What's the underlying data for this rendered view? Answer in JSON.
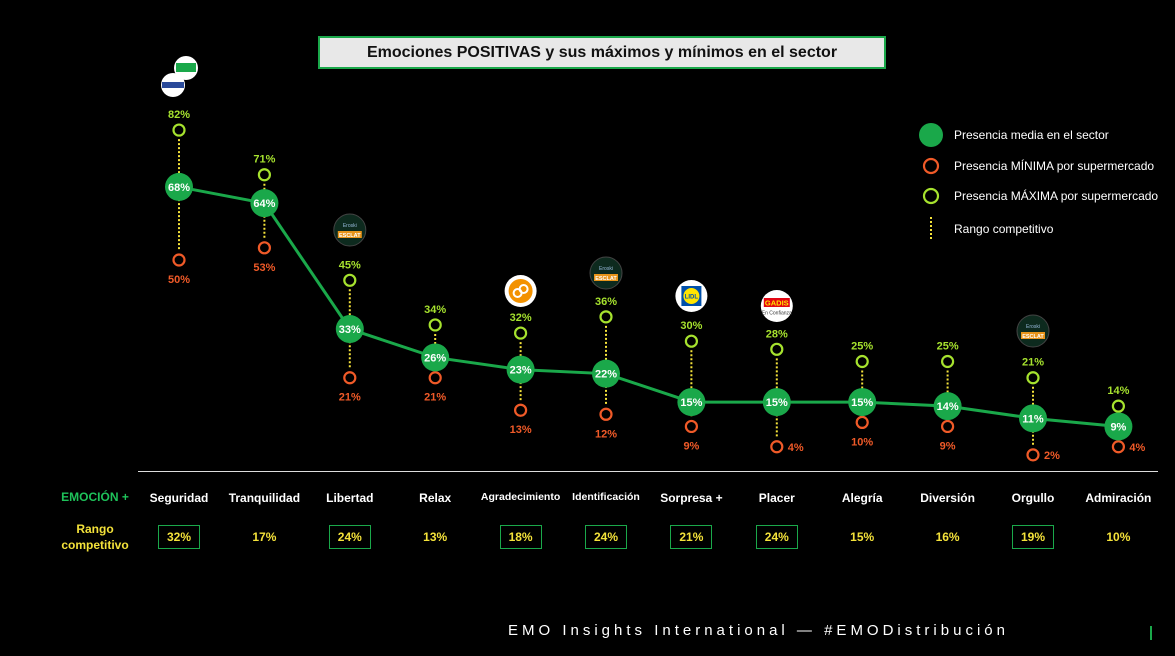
{
  "title": "Emociones POSITIVAS y sus máximos y mínimos en el sector",
  "legend": {
    "avg": "Presencia media en el sector",
    "min": "Presencia MÍNIMA por supermercado",
    "max": "Presencia MÁXIMA por supermercado",
    "range": "Rango competitivo"
  },
  "row_labels": {
    "emotion": "EMOCIÓN +",
    "range": "Rango competitivo"
  },
  "logos": {
    "seguridad": [
      "elcorteingles-logo",
      "supercor-logo"
    ],
    "libertad": "eroski-logo",
    "agradecimiento": "eroski-city-logo",
    "identificacion": "eroski-logo",
    "sorpresa": "lidl-logo",
    "placer": "gadis-logo",
    "orgullo": "eroski-logo"
  },
  "logo_text": {
    "gadis_top": "GADIS",
    "gadis_bottom": "En Confianza",
    "lidl": "LIDL",
    "eroski_top": "Eroski",
    "eroski_bottom": "ESCLAT"
  },
  "footer": "EMO Insights International — #EMODistribución",
  "colors": {
    "avg": "#1aa84a",
    "min": "#f05a28",
    "max": "#a6e22e",
    "range": "#f4e23a"
  },
  "chart_data": {
    "type": "line",
    "categories": [
      "Seguridad",
      "Tranquilidad",
      "Libertad",
      "Relax",
      "Agradecimiento",
      "Identificación",
      "Sorpresa +",
      "Placer",
      "Alegría",
      "Diversión",
      "Orgullo",
      "Admiración"
    ],
    "series": [
      {
        "name": "Presencia media en el sector",
        "values": [
          68,
          64,
          33,
          26,
          23,
          22,
          15,
          15,
          15,
          14,
          11,
          9
        ]
      },
      {
        "name": "Presencia MÍNIMA por supermercado",
        "values": [
          50,
          53,
          21,
          21,
          13,
          12,
          9,
          4,
          10,
          9,
          2,
          4
        ]
      },
      {
        "name": "Presencia MÁXIMA por supermercado",
        "values": [
          82,
          71,
          45,
          34,
          32,
          36,
          30,
          28,
          25,
          25,
          21,
          14
        ]
      }
    ],
    "range": [
      32,
      17,
      24,
      13,
      18,
      24,
      21,
      24,
      15,
      16,
      19,
      10
    ],
    "range_highlighted": [
      true,
      false,
      true,
      false,
      true,
      true,
      true,
      true,
      false,
      false,
      true,
      false
    ]
  }
}
